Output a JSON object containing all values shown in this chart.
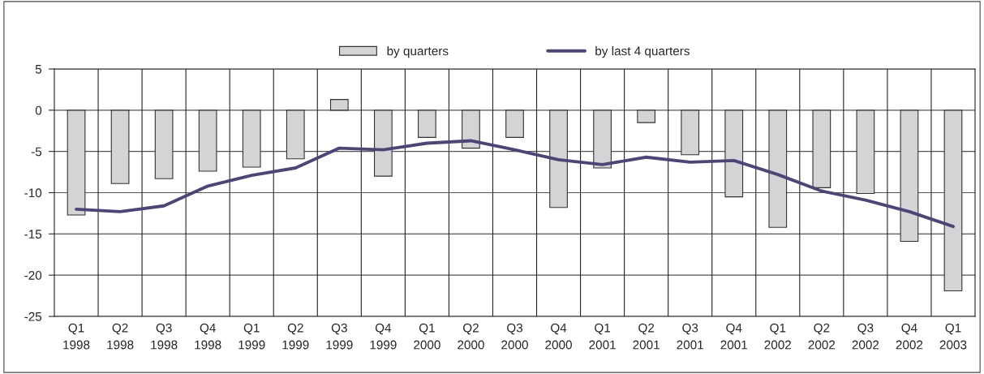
{
  "chart_data": {
    "type": "bar",
    "categories": [
      "Q1\n1998",
      "Q2\n1998",
      "Q3\n1998",
      "Q4\n1998",
      "Q1\n1999",
      "Q2\n1999",
      "Q3\n1999",
      "Q4\n1999",
      "Q1\n2000",
      "Q2\n2000",
      "Q3\n2000",
      "Q4\n2000",
      "Q1\n2001",
      "Q2\n2001",
      "Q3\n2001",
      "Q4\n2001",
      "Q1\n2002",
      "Q2\n2002",
      "Q3\n2002",
      "Q4\n2002",
      "Q1\n2003"
    ],
    "series": [
      {
        "name": "by quarters",
        "color": "#d3d4d6",
        "values": [
          -12.7,
          -8.9,
          -8.3,
          -7.4,
          -6.9,
          -5.9,
          1.3,
          -8.0,
          -3.3,
          -4.6,
          -3.3,
          -11.8,
          -7.0,
          -1.5,
          -5.4,
          -10.5,
          -14.2,
          -9.4,
          -10.1,
          -15.9,
          -21.9
        ]
      },
      {
        "name": "by last 4 quarters",
        "type": "line",
        "color": "#4b4673",
        "values": [
          -12.0,
          -12.3,
          -11.6,
          -9.2,
          -7.9,
          -7.0,
          -4.6,
          -4.8,
          -4.0,
          -3.7,
          -4.8,
          -6.0,
          -6.6,
          -5.7,
          -6.3,
          -6.1,
          -7.8,
          -9.8,
          -10.9,
          -12.3,
          -14.1
        ]
      }
    ],
    "ylim": [
      -25,
      5
    ],
    "yticks": [
      -25,
      -20,
      -15,
      -10,
      -5,
      0,
      5
    ],
    "grid": true,
    "legend": "top"
  }
}
